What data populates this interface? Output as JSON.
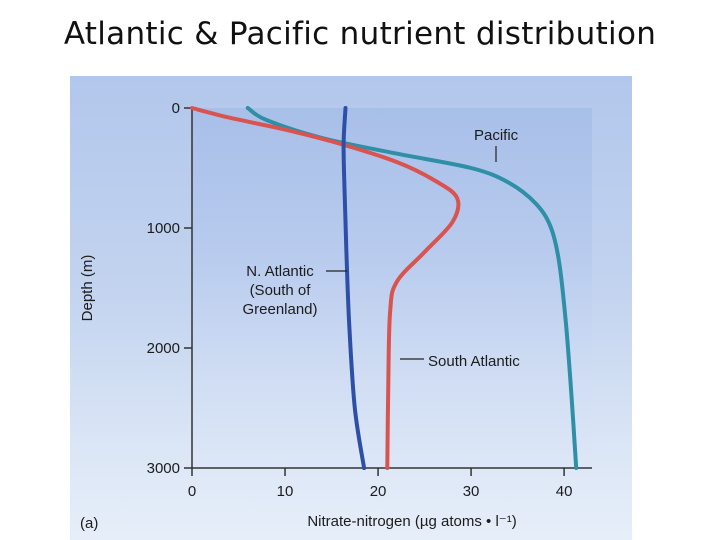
{
  "slide": {
    "title": "Atlantic & Pacific nutrient distribution"
  },
  "chart_data": {
    "type": "line",
    "panel_label": "(a)",
    "xlabel": "Nitrate-nitrogen (µg atoms • l⁻¹)",
    "ylabel": "Depth (m)",
    "xlim": [
      0,
      43
    ],
    "ylim": [
      3000,
      0
    ],
    "x_ticks": [
      0,
      10,
      20,
      30,
      40
    ],
    "y_ticks": [
      0,
      1000,
      2000,
      3000
    ],
    "series": [
      {
        "name": "Pacific",
        "color": "#2e8fa6",
        "points": [
          [
            6,
            0
          ],
          [
            8,
            100
          ],
          [
            14,
            250
          ],
          [
            22,
            380
          ],
          [
            30,
            500
          ],
          [
            34,
            620
          ],
          [
            37,
            800
          ],
          [
            38.6,
            1000
          ],
          [
            39.5,
            1300
          ],
          [
            40.2,
            1800
          ],
          [
            40.8,
            2400
          ],
          [
            41.3,
            3000
          ]
        ]
      },
      {
        "name": "South Atlantic",
        "color": "#d9534f",
        "points": [
          [
            0,
            0
          ],
          [
            4,
            80
          ],
          [
            10,
            180
          ],
          [
            16,
            300
          ],
          [
            22,
            450
          ],
          [
            26,
            600
          ],
          [
            28.5,
            750
          ],
          [
            28,
            950
          ],
          [
            25,
            1200
          ],
          [
            22,
            1450
          ],
          [
            21.3,
            1700
          ],
          [
            21.1,
            2300
          ],
          [
            21.0,
            3000
          ]
        ]
      },
      {
        "name": "N. Atlantic (South of Greenland)",
        "color": "#2e4fa8",
        "points": [
          [
            16.5,
            0
          ],
          [
            16.3,
            300
          ],
          [
            16.4,
            700
          ],
          [
            16.6,
            1200
          ],
          [
            16.9,
            1800
          ],
          [
            17.5,
            2500
          ],
          [
            18.5,
            3000
          ]
        ]
      }
    ],
    "annotations": [
      {
        "key": "pacific",
        "lines": [
          "Pacific"
        ]
      },
      {
        "key": "south_atlantic",
        "lines": [
          "South Atlantic"
        ]
      },
      {
        "key": "n_atlantic",
        "lines": [
          "N. Atlantic",
          "(South of",
          "Greenland)"
        ]
      }
    ]
  }
}
